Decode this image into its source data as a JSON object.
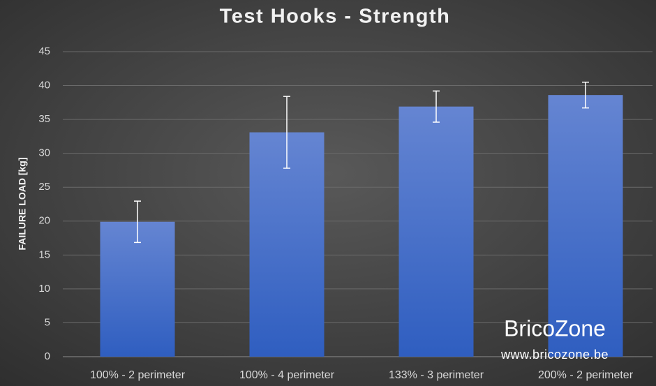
{
  "chart_data": {
    "type": "bar",
    "title": "Test Hooks - Strength",
    "y_label": "FAILURE LOAD [kg]",
    "categories": [
      "100% - 2 perimeter",
      "100% - 4 perimeter",
      "133% - 3 perimeter",
      "200% - 2 perimeter"
    ],
    "values": [
      19.9,
      33.1,
      36.9,
      38.6
    ],
    "errors": [
      3.05,
      5.3,
      2.3,
      1.9
    ],
    "color": "#4472c4",
    "ylim": [
      0,
      45
    ],
    "yticks": [
      0,
      5,
      10,
      15,
      20,
      25,
      30,
      35,
      40,
      45
    ],
    "grid": true,
    "annotations": [
      "BricoZone",
      "www.bricozone.be"
    ]
  }
}
